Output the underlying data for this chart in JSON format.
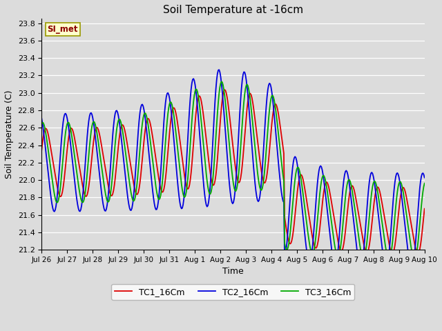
{
  "title": "Soil Temperature at -16cm",
  "xlabel": "Time",
  "ylabel": "Soil Temperature (C)",
  "ylim": [
    21.2,
    23.85
  ],
  "yticks": [
    21.2,
    21.4,
    21.6,
    21.8,
    22.0,
    22.2,
    22.4,
    22.6,
    22.8,
    23.0,
    23.2,
    23.4,
    23.6,
    23.8
  ],
  "bg_color": "#dcdcdc",
  "line_colors": {
    "TC1": "#dd0000",
    "TC2": "#0000dd",
    "TC3": "#00aa00"
  },
  "legend_labels": [
    "TC1_16Cm",
    "TC2_16Cm",
    "TC3_16Cm"
  ],
  "watermark": "SI_met",
  "tick_labels": [
    "Jul 26",
    "Jul 27",
    "Jul 28",
    "Jul 29",
    "Jul 30",
    "Jul 31",
    "Aug 1",
    "Aug 2",
    "Aug 3",
    "Aug 4",
    "Aug 5",
    "Aug 6",
    "Aug 7",
    "Aug 8",
    "Aug 9",
    "Aug 10"
  ],
  "n_points": 480,
  "total_days": 15
}
